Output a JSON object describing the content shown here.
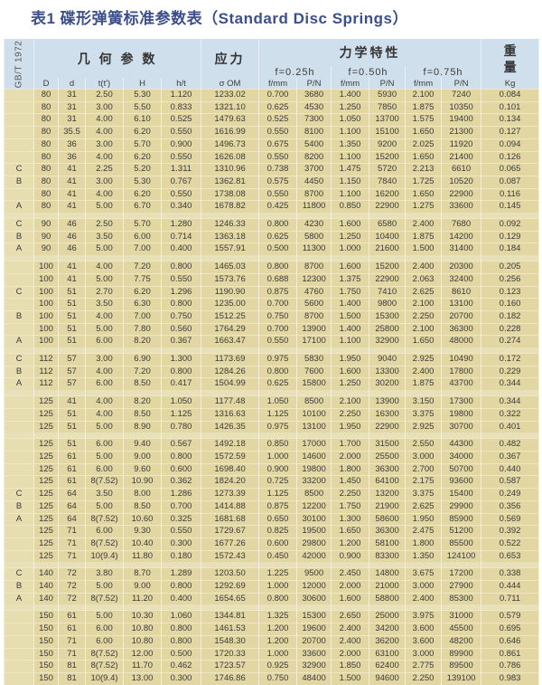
{
  "title": "表1  碟形弹簧标准参数表（Standard Disc Springs）",
  "header": {
    "standard": "GB/T 1972",
    "geometry": "几 何 参 数",
    "stress": "应力",
    "mechanics": "力学特性",
    "weight": "重量",
    "f_groups": [
      "f=0.25h",
      "f=0.50h",
      "f=0.75h"
    ],
    "columns": [
      "D",
      "d",
      "t(t')",
      "H",
      "h/t",
      "σ OM",
      "f/mm",
      "P/N",
      "f/mm",
      "P/N",
      "f/mm",
      "P/N",
      "Kg"
    ]
  },
  "colors": {
    "header_bg": "#cfe0ec",
    "row_bg": "#e2d7a3",
    "title": "#3d4f8a"
  },
  "groups": [
    [
      [
        "",
        "80",
        "31",
        "2.50",
        "5.30",
        "1.120",
        "1233.02",
        "0.700",
        "3680",
        "1.400",
        "5930",
        "2.100",
        "7240",
        "0.084"
      ],
      [
        "",
        "80",
        "31",
        "3.00",
        "5.50",
        "0.833",
        "1321.10",
        "0.625",
        "4530",
        "1.250",
        "7850",
        "1.875",
        "10350",
        "0.101"
      ],
      [
        "",
        "80",
        "31",
        "4.00",
        "6.10",
        "0.525",
        "1479.63",
        "0.525",
        "7300",
        "1.050",
        "13700",
        "1.575",
        "19400",
        "0.134"
      ],
      [
        "",
        "80",
        "35.5",
        "4.00",
        "6.20",
        "0.550",
        "1616.99",
        "0.550",
        "8100",
        "1.100",
        "15100",
        "1.650",
        "21300",
        "0.127"
      ],
      [
        "",
        "80",
        "36",
        "3.00",
        "5.70",
        "0.900",
        "1496.73",
        "0.675",
        "5400",
        "1.350",
        "9200",
        "2.025",
        "11920",
        "0.094"
      ],
      [
        "",
        "80",
        "36",
        "4.00",
        "6.20",
        "0.550",
        "1626.08",
        "0.550",
        "8200",
        "1.100",
        "15200",
        "1.650",
        "21400",
        "0.126"
      ],
      [
        "C",
        "80",
        "41",
        "2.25",
        "5.20",
        "1.311",
        "1310.96",
        "0.738",
        "3700",
        "1.475",
        "5720",
        "2.213",
        "6610",
        "0.065"
      ],
      [
        "B",
        "80",
        "41",
        "3.00",
        "5.30",
        "0.767",
        "1362.81",
        "0.575",
        "4450",
        "1.150",
        "7840",
        "1.725",
        "10520",
        "0.087"
      ],
      [
        "",
        "80",
        "41",
        "4.00",
        "6.20",
        "0.550",
        "1738.08",
        "0.550",
        "8700",
        "1.100",
        "16200",
        "1.650",
        "22900",
        "0.116"
      ],
      [
        "A",
        "80",
        "41",
        "5.00",
        "6.70",
        "0.340",
        "1678.82",
        "0.425",
        "11800",
        "0.850",
        "22900",
        "1.275",
        "33600",
        "0.145"
      ]
    ],
    [
      [
        "C",
        "90",
        "46",
        "2.50",
        "5.70",
        "1.280",
        "1246.33",
        "0.800",
        "4230",
        "1.600",
        "6580",
        "2.400",
        "7680",
        "0.092"
      ],
      [
        "B",
        "90",
        "46",
        "3.50",
        "6.00",
        "0.714",
        "1363.18",
        "0.625",
        "5800",
        "1.250",
        "10400",
        "1.875",
        "14200",
        "0.129"
      ],
      [
        "A",
        "90",
        "46",
        "5.00",
        "7.00",
        "0.400",
        "1557.91",
        "0.500",
        "11300",
        "1.000",
        "21600",
        "1.500",
        "31400",
        "0.184"
      ]
    ],
    [
      [
        "",
        "100",
        "41",
        "4.00",
        "7.20",
        "0.800",
        "1465.03",
        "0.800",
        "8700",
        "1.600",
        "15200",
        "2.400",
        "20300",
        "0.205"
      ],
      [
        "",
        "100",
        "41",
        "5.00",
        "7.75",
        "0.550",
        "1573.76",
        "0.688",
        "12300",
        "1.375",
        "22900",
        "2.063",
        "32400",
        "0.256"
      ],
      [
        "C",
        "100",
        "51",
        "2.70",
        "6.20",
        "1.296",
        "1190.90",
        "0.875",
        "4760",
        "1.750",
        "7410",
        "2.625",
        "8610",
        "0.123"
      ],
      [
        "",
        "100",
        "51",
        "3.50",
        "6.30",
        "0.800",
        "1235.00",
        "0.700",
        "5600",
        "1.400",
        "9800",
        "2.100",
        "13100",
        "0.160"
      ],
      [
        "B",
        "100",
        "51",
        "4.00",
        "7.00",
        "0.750",
        "1512.25",
        "0.750",
        "8700",
        "1.500",
        "15300",
        "2.250",
        "20700",
        "0.182"
      ],
      [
        "",
        "100",
        "51",
        "5.00",
        "7.80",
        "0.560",
        "1764.29",
        "0.700",
        "13900",
        "1.400",
        "25800",
        "2.100",
        "36300",
        "0.228"
      ],
      [
        "A",
        "100",
        "51",
        "6.00",
        "8.20",
        "0.367",
        "1663.47",
        "0.550",
        "17100",
        "1.100",
        "32900",
        "1.650",
        "48000",
        "0.274"
      ]
    ],
    [
      [
        "C",
        "112",
        "57",
        "3.00",
        "6.90",
        "1.300",
        "1173.69",
        "0.975",
        "5830",
        "1.950",
        "9040",
        "2.925",
        "10490",
        "0.172"
      ],
      [
        "B",
        "112",
        "57",
        "4.00",
        "7.20",
        "0.800",
        "1284.26",
        "0.800",
        "7600",
        "1.600",
        "13300",
        "2.400",
        "17800",
        "0.229"
      ],
      [
        "A",
        "112",
        "57",
        "6.00",
        "8.50",
        "0.417",
        "1504.99",
        "0.625",
        "15800",
        "1.250",
        "30200",
        "1.875",
        "43700",
        "0.344"
      ]
    ],
    [
      [
        "",
        "125",
        "41",
        "4.00",
        "8.20",
        "1.050",
        "1177.48",
        "1.050",
        "8500",
        "2.100",
        "13900",
        "3.150",
        "17300",
        "0.344"
      ],
      [
        "",
        "125",
        "51",
        "4.00",
        "8.50",
        "1.125",
        "1316.63",
        "1.125",
        "10100",
        "2.250",
        "16300",
        "3.375",
        "19800",
        "0.322"
      ],
      [
        "",
        "125",
        "51",
        "5.00",
        "8.90",
        "0.780",
        "1426.35",
        "0.975",
        "13100",
        "1.950",
        "22900",
        "2.925",
        "30700",
        "0.401"
      ]
    ],
    [
      [
        "",
        "125",
        "51",
        "6.00",
        "9.40",
        "0.567",
        "1492.18",
        "0.850",
        "17000",
        "1.700",
        "31500",
        "2.550",
        "44300",
        "0.482"
      ],
      [
        "",
        "125",
        "61",
        "5.00",
        "9.00",
        "0.800",
        "1572.59",
        "1.000",
        "14600",
        "2.000",
        "25500",
        "3.000",
        "34000",
        "0.367"
      ],
      [
        "",
        "125",
        "61",
        "6.00",
        "9.60",
        "0.600",
        "1698.40",
        "0.900",
        "19800",
        "1.800",
        "36300",
        "2.700",
        "50700",
        "0.440"
      ],
      [
        "",
        "125",
        "61",
        "8(7.52)",
        "10.90",
        "0.362",
        "1824.20",
        "0.725",
        "33200",
        "1.450",
        "64100",
        "2.175",
        "93600",
        "0.587"
      ],
      [
        "C",
        "125",
        "64",
        "3.50",
        "8.00",
        "1.286",
        "1273.39",
        "1.125",
        "8500",
        "2.250",
        "13200",
        "3.375",
        "15400",
        "0.249"
      ],
      [
        "B",
        "125",
        "64",
        "5.00",
        "8.50",
        "0.700",
        "1414.88",
        "0.875",
        "12200",
        "1.750",
        "21900",
        "2.625",
        "29900",
        "0.356"
      ],
      [
        "A",
        "125",
        "64",
        "8(7.52)",
        "10.60",
        "0.325",
        "1681.68",
        "0.650",
        "30100",
        "1.300",
        "58600",
        "1.950",
        "85900",
        "0.569"
      ],
      [
        "",
        "125",
        "71",
        "6.00",
        "9.30",
        "0.550",
        "1729.67",
        "0.825",
        "19500",
        "1.650",
        "36300",
        "2.475",
        "51200",
        "0.392"
      ],
      [
        "",
        "125",
        "71",
        "8(7.52)",
        "10.40",
        "0.300",
        "1677.26",
        "0.600",
        "29800",
        "1.200",
        "58100",
        "1.800",
        "85500",
        "0.522"
      ],
      [
        "",
        "125",
        "71",
        "10(9.4)",
        "11.80",
        "0.180",
        "1572.43",
        "0.450",
        "42000",
        "0.900",
        "83300",
        "1.350",
        "124100",
        "0.653"
      ]
    ],
    [
      [
        "C",
        "140",
        "72",
        "3.80",
        "8.70",
        "1.289",
        "1203.50",
        "1.225",
        "9500",
        "2.450",
        "14800",
        "3.675",
        "17200",
        "0.338"
      ],
      [
        "B",
        "140",
        "72",
        "5.00",
        "9.00",
        "0.800",
        "1292.69",
        "1.000",
        "12000",
        "2.000",
        "21000",
        "3.000",
        "27900",
        "0.444"
      ],
      [
        "A",
        "140",
        "72",
        "8(7.52)",
        "11.20",
        "0.400",
        "1654.65",
        "0.800",
        "30600",
        "1.600",
        "58800",
        "2.400",
        "85300",
        "0.711"
      ]
    ],
    [
      [
        "",
        "150",
        "61",
        "5.00",
        "10.30",
        "1.060",
        "1344.81",
        "1.325",
        "15300",
        "2.650",
        "25000",
        "3.975",
        "31000",
        "0.579"
      ],
      [
        "",
        "150",
        "61",
        "6.00",
        "10.80",
        "0.800",
        "1461.53",
        "1.200",
        "19600",
        "2.400",
        "34200",
        "3.600",
        "45500",
        "0.695"
      ],
      [
        "",
        "150",
        "71",
        "6.00",
        "10.80",
        "0.800",
        "1548.30",
        "1.200",
        "20700",
        "2.400",
        "36200",
        "3.600",
        "48200",
        "0.646"
      ],
      [
        "",
        "150",
        "71",
        "8(7.52)",
        "12.00",
        "0.500",
        "1720.33",
        "1.000",
        "33600",
        "2.000",
        "63100",
        "3.000",
        "89900",
        "0.861"
      ],
      [
        "",
        "150",
        "81",
        "8(7.52)",
        "11.70",
        "0.462",
        "1723.57",
        "0.925",
        "32900",
        "1.850",
        "62400",
        "2.775",
        "89500",
        "0.786"
      ],
      [
        "",
        "150",
        "81",
        "10(9.4)",
        "13.00",
        "0.300",
        "1746.86",
        "0.750",
        "48400",
        "1.500",
        "94600",
        "2.250",
        "139100",
        "0.983"
      ]
    ]
  ]
}
